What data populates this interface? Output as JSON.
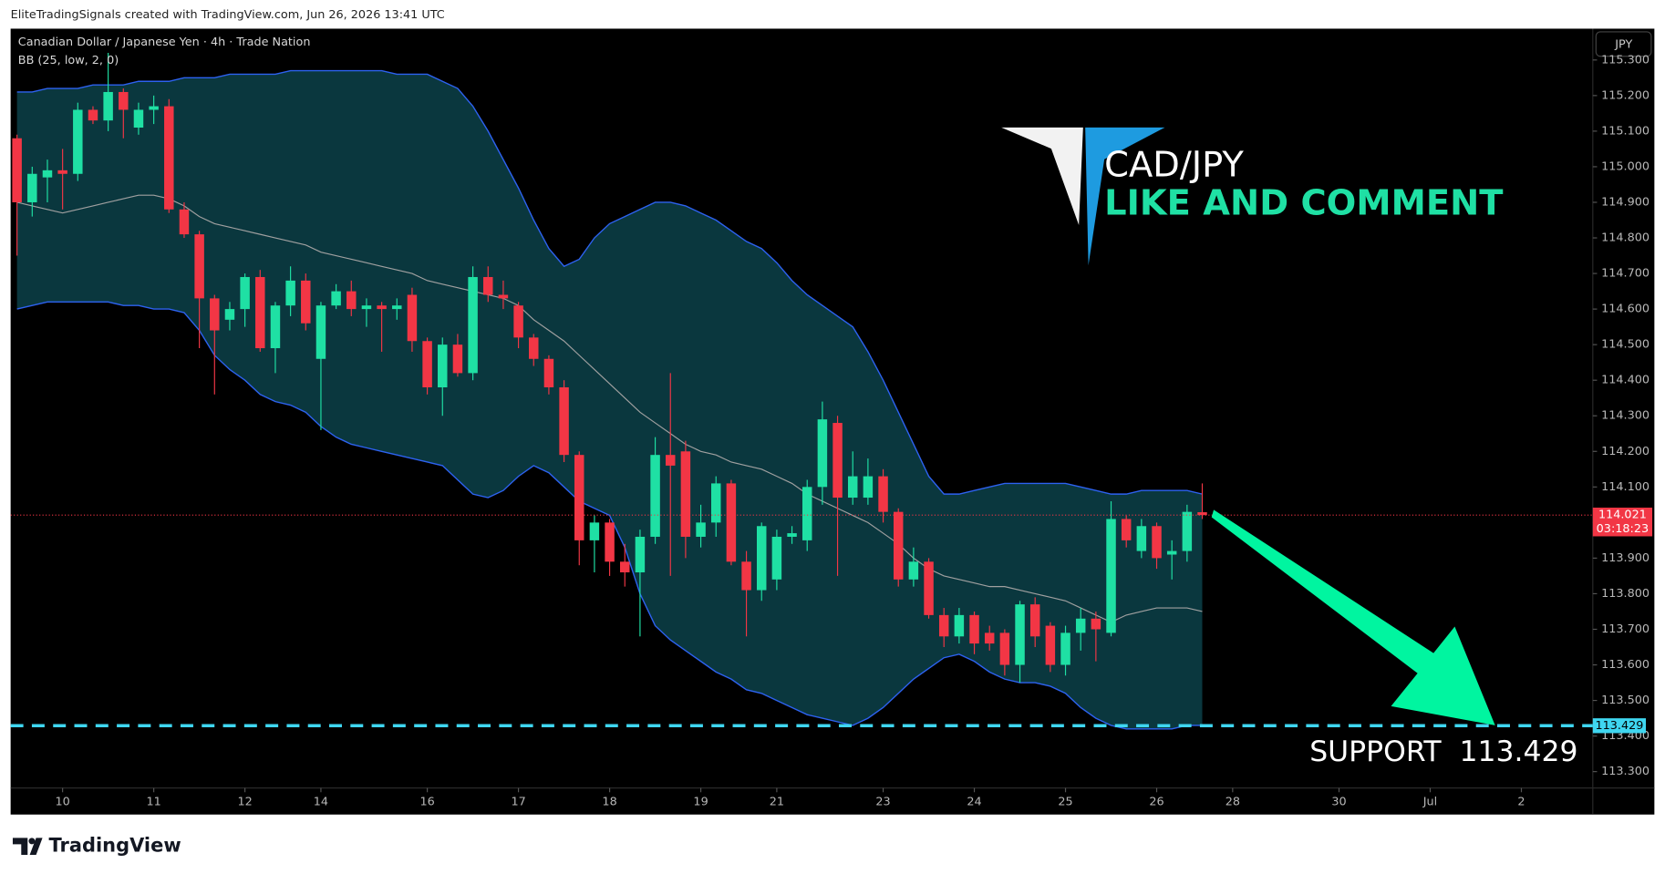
{
  "header": "EliteTradingSignals created with TradingView.com, Jun 26, 2026 13:41 UTC",
  "footer_logo": "TradingView",
  "chart_data": {
    "type": "candlestick",
    "title": "Canadian Dollar / Japanese Yen · 4h · Trade Nation",
    "indicator_label": "BB (25, low, 2, 0)",
    "currency_button": "JPY",
    "open": [
      115.08,
      114.9,
      114.97,
      114.99,
      114.98,
      115.16,
      115.13,
      115.21,
      115.11,
      115.16,
      115.17,
      114.88,
      114.81,
      114.63,
      114.57,
      114.6,
      114.69,
      114.49,
      114.61,
      114.68,
      114.46,
      114.61,
      114.65,
      114.6,
      114.61,
      114.6,
      114.64,
      114.51,
      114.38,
      114.5,
      114.42,
      114.69,
      114.64,
      114.61,
      114.52,
      114.46,
      114.38,
      114.19,
      113.95,
      114.0,
      113.89,
      113.86,
      113.96,
      114.19,
      114.2,
      113.96,
      114.0,
      114.11,
      113.89,
      113.81,
      113.84,
      113.96,
      113.95,
      114.1,
      114.28,
      114.07,
      114.07,
      114.13,
      114.03,
      113.84,
      113.89,
      113.74,
      113.68,
      113.74,
      113.69,
      113.69,
      113.6,
      113.77,
      113.71,
      113.6,
      113.69,
      113.73,
      113.69,
      114.01,
      113.92,
      113.99,
      113.91,
      113.92,
      114.029
    ],
    "high": [
      115.09,
      115.0,
      115.02,
      115.05,
      115.18,
      115.17,
      115.32,
      115.22,
      115.18,
      115.2,
      115.19,
      114.9,
      114.82,
      114.64,
      114.62,
      114.7,
      114.71,
      114.62,
      114.72,
      114.7,
      114.62,
      114.67,
      114.68,
      114.63,
      114.62,
      114.63,
      114.66,
      114.52,
      114.52,
      114.53,
      114.72,
      114.72,
      114.68,
      114.62,
      114.53,
      114.47,
      114.4,
      114.2,
      114.02,
      114.01,
      113.94,
      113.98,
      114.24,
      114.42,
      114.23,
      114.05,
      114.13,
      114.12,
      113.92,
      114.0,
      113.98,
      113.99,
      114.12,
      114.34,
      114.3,
      114.2,
      114.18,
      114.15,
      114.04,
      113.93,
      113.9,
      113.76,
      113.76,
      113.75,
      113.71,
      113.7,
      113.78,
      113.79,
      113.72,
      113.71,
      113.76,
      113.75,
      114.06,
      114.02,
      114.01,
      114.0,
      113.95,
      114.05,
      114.11
    ],
    "low": [
      114.75,
      114.86,
      114.9,
      114.88,
      114.96,
      115.12,
      115.1,
      115.08,
      115.09,
      115.12,
      114.87,
      114.8,
      114.49,
      114.36,
      114.54,
      114.55,
      114.48,
      114.42,
      114.58,
      114.54,
      114.26,
      114.6,
      114.58,
      114.55,
      114.48,
      114.57,
      114.48,
      114.36,
      114.3,
      114.41,
      114.4,
      114.62,
      114.6,
      114.49,
      114.44,
      114.36,
      114.17,
      113.88,
      113.86,
      113.85,
      113.82,
      113.68,
      113.94,
      113.85,
      113.9,
      113.93,
      113.96,
      113.88,
      113.68,
      113.78,
      113.81,
      113.94,
      113.92,
      114.05,
      113.85,
      114.05,
      114.05,
      114.0,
      113.82,
      113.82,
      113.73,
      113.65,
      113.66,
      113.63,
      113.64,
      113.57,
      113.55,
      113.65,
      113.58,
      113.57,
      113.64,
      113.61,
      113.68,
      113.93,
      113.9,
      113.87,
      113.84,
      113.89,
      114.01
    ],
    "close": [
      114.9,
      114.98,
      114.99,
      114.98,
      115.16,
      115.13,
      115.21,
      115.16,
      115.16,
      115.17,
      114.88,
      114.81,
      114.63,
      114.54,
      114.6,
      114.69,
      114.49,
      114.61,
      114.68,
      114.56,
      114.61,
      114.65,
      114.6,
      114.61,
      114.6,
      114.61,
      114.51,
      114.38,
      114.5,
      114.42,
      114.69,
      114.64,
      114.63,
      114.52,
      114.46,
      114.38,
      114.19,
      113.95,
      114.0,
      113.89,
      113.86,
      113.96,
      114.19,
      114.16,
      113.96,
      114.0,
      114.11,
      113.89,
      113.81,
      113.99,
      113.96,
      113.97,
      114.1,
      114.29,
      114.07,
      114.13,
      114.13,
      114.03,
      113.84,
      113.89,
      113.74,
      113.68,
      113.74,
      113.66,
      113.66,
      113.6,
      113.77,
      113.68,
      113.6,
      113.69,
      113.73,
      113.7,
      114.01,
      113.95,
      113.99,
      113.9,
      113.92,
      114.03,
      114.021
    ],
    "up_color": "#1fe0a4",
    "down_color": "#f23645",
    "bollinger": {
      "upper": [
        115.21,
        115.21,
        115.22,
        115.22,
        115.22,
        115.23,
        115.23,
        115.23,
        115.24,
        115.24,
        115.24,
        115.25,
        115.25,
        115.25,
        115.26,
        115.26,
        115.26,
        115.26,
        115.27,
        115.27,
        115.27,
        115.27,
        115.27,
        115.27,
        115.27,
        115.26,
        115.26,
        115.26,
        115.24,
        115.22,
        115.17,
        115.1,
        115.02,
        114.94,
        114.85,
        114.77,
        114.72,
        114.74,
        114.8,
        114.84,
        114.86,
        114.88,
        114.9,
        114.9,
        114.89,
        114.87,
        114.85,
        114.82,
        114.79,
        114.77,
        114.73,
        114.68,
        114.64,
        114.61,
        114.58,
        114.55,
        114.48,
        114.4,
        114.31,
        114.22,
        114.13,
        114.08,
        114.08,
        114.09,
        114.1,
        114.11,
        114.11,
        114.11,
        114.11,
        114.11,
        114.1,
        114.09,
        114.08,
        114.08,
        114.09,
        114.09,
        114.09,
        114.09,
        114.08
      ],
      "basis": [
        114.9,
        114.89,
        114.88,
        114.87,
        114.88,
        114.89,
        114.9,
        114.91,
        114.92,
        114.92,
        114.91,
        114.89,
        114.86,
        114.84,
        114.83,
        114.82,
        114.81,
        114.8,
        114.79,
        114.78,
        114.76,
        114.75,
        114.74,
        114.73,
        114.72,
        114.71,
        114.7,
        114.68,
        114.67,
        114.66,
        114.65,
        114.64,
        114.63,
        114.61,
        114.57,
        114.54,
        114.51,
        114.47,
        114.43,
        114.39,
        114.35,
        114.31,
        114.28,
        114.25,
        114.22,
        114.2,
        114.19,
        114.17,
        114.16,
        114.15,
        114.13,
        114.11,
        114.08,
        114.06,
        114.04,
        114.02,
        114.0,
        113.97,
        113.94,
        113.9,
        113.87,
        113.85,
        113.84,
        113.83,
        113.82,
        113.82,
        113.81,
        113.8,
        113.79,
        113.78,
        113.76,
        113.74,
        113.72,
        113.74,
        113.75,
        113.76,
        113.76,
        113.76,
        113.75
      ],
      "lower": [
        114.6,
        114.61,
        114.62,
        114.62,
        114.62,
        114.62,
        114.62,
        114.61,
        114.61,
        114.6,
        114.6,
        114.59,
        114.54,
        114.47,
        114.43,
        114.4,
        114.36,
        114.34,
        114.33,
        114.31,
        114.27,
        114.24,
        114.22,
        114.21,
        114.2,
        114.19,
        114.18,
        114.17,
        114.16,
        114.12,
        114.08,
        114.07,
        114.09,
        114.13,
        114.16,
        114.14,
        114.1,
        114.06,
        114.04,
        114.02,
        113.93,
        113.8,
        113.71,
        113.67,
        113.64,
        113.61,
        113.58,
        113.56,
        113.53,
        113.52,
        113.5,
        113.48,
        113.46,
        113.45,
        113.44,
        113.43,
        113.45,
        113.48,
        113.52,
        113.56,
        113.59,
        113.62,
        113.63,
        113.61,
        113.58,
        113.56,
        113.55,
        113.55,
        113.54,
        113.52,
        113.48,
        113.45,
        113.43,
        113.42,
        113.42,
        113.42,
        113.42,
        113.43,
        113.43
      ],
      "line_color": "#2d62f0",
      "basis_color": "#a0a0a0",
      "fill_color": "#0b3a41"
    },
    "grid": false,
    "ylim": [
      113.254,
      115.388
    ],
    "yticks": [
      {
        "value": 115.3,
        "label": "115.300"
      },
      {
        "value": 115.2,
        "label": "115.200"
      },
      {
        "value": 115.1,
        "label": "115.100"
      },
      {
        "value": 115.0,
        "label": "115.000"
      },
      {
        "value": 114.9,
        "label": "114.900"
      },
      {
        "value": 114.8,
        "label": "114.800"
      },
      {
        "value": 114.7,
        "label": "114.700"
      },
      {
        "value": 114.6,
        "label": "114.600"
      },
      {
        "value": 114.5,
        "label": "114.500"
      },
      {
        "value": 114.4,
        "label": "114.400"
      },
      {
        "value": 114.3,
        "label": "114.300"
      },
      {
        "value": 114.2,
        "label": "114.200"
      },
      {
        "value": 114.1,
        "label": "114.100"
      },
      {
        "value": 114.0,
        "label": "114.000"
      },
      {
        "value": 113.9,
        "label": "113.900"
      },
      {
        "value": 113.8,
        "label": "113.800"
      },
      {
        "value": 113.7,
        "label": "113.700"
      },
      {
        "value": 113.6,
        "label": "113.600"
      },
      {
        "value": 113.5,
        "label": "113.500"
      },
      {
        "value": 113.4,
        "label": "113.400"
      },
      {
        "value": 113.3,
        "label": "113.300"
      }
    ],
    "xlim": [
      -0.42,
      103.7
    ],
    "xticks": [
      {
        "value": 3,
        "label": "10"
      },
      {
        "value": 9,
        "label": "11"
      },
      {
        "value": 15,
        "label": "12"
      },
      {
        "value": 20,
        "label": "14"
      },
      {
        "value": 27,
        "label": "16"
      },
      {
        "value": 33,
        "label": "17"
      },
      {
        "value": 39,
        "label": "18"
      },
      {
        "value": 45,
        "label": "19"
      },
      {
        "value": 50,
        "label": "21"
      },
      {
        "value": 57,
        "label": "23"
      },
      {
        "value": 63,
        "label": "24"
      },
      {
        "value": 69,
        "label": "25"
      },
      {
        "value": 75,
        "label": "26"
      },
      {
        "value": 80,
        "label": "28"
      },
      {
        "value": 87,
        "label": "30"
      },
      {
        "value": 93,
        "label": "Jul"
      },
      {
        "value": 99,
        "label": "2"
      }
    ],
    "last_price": {
      "value": 114.021,
      "countdown": "03:18:23",
      "color": "#f23645"
    },
    "support": {
      "value": 113.429,
      "color": "#3fd6f0"
    },
    "annotations": {
      "symbol": "CAD/JPY",
      "cta": "LIKE AND COMMENT",
      "support_text": "SUPPORT  113.429"
    }
  }
}
